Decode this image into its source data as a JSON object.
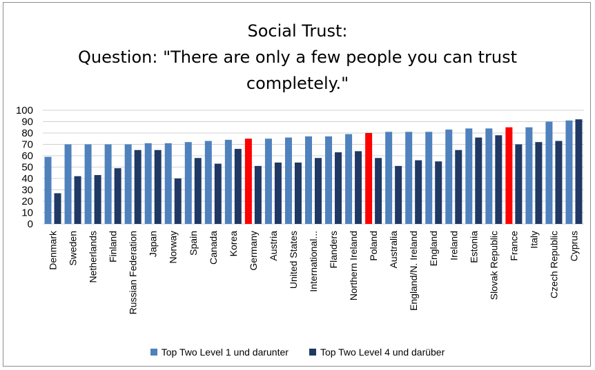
{
  "chart_data": {
    "type": "bar",
    "title_lines": [
      "Social Trust:",
      "Question: \"There are only a few people you can trust",
      "completely.\""
    ],
    "categories": [
      "Denmark",
      "Sweden",
      "Netherlands",
      "Finland",
      "Russian Federation",
      "Japan",
      "Norway",
      "Spain",
      "Canada",
      "Korea",
      "Germany",
      "Austria",
      "United States",
      "International...",
      "Flanders",
      "Northern Ireland",
      "Poland",
      "Australia",
      "England/N. Ireland",
      "England",
      "Ireland",
      "Estonia",
      "Slovak Republic",
      "France",
      "Italy",
      "Czech Republic",
      "Cyprus"
    ],
    "highlighted_categories": [
      "Germany",
      "Poland",
      "France"
    ],
    "series": [
      {
        "name": "Top Two Level 1 und darunter",
        "color": "#4f81bd",
        "values": [
          59,
          70,
          70,
          70,
          70,
          71,
          71,
          72,
          73,
          74,
          75,
          75,
          76,
          77,
          77,
          79,
          80,
          81,
          81,
          81,
          83,
          84,
          84,
          85,
          85,
          90,
          91
        ]
      },
      {
        "name": "Top Two Level 4 und darüber",
        "color": "#1f3864",
        "values": [
          27,
          42,
          43,
          49,
          65,
          65,
          40,
          58,
          53,
          66,
          51,
          54,
          54,
          58,
          63,
          64,
          58,
          51,
          56,
          55,
          65,
          76,
          78,
          70,
          72,
          73,
          92
        ]
      }
    ],
    "highlight_color": "#ff0000",
    "yticks": [
      0,
      10,
      20,
      30,
      40,
      50,
      60,
      70,
      80,
      90,
      100
    ],
    "ylim": [
      0,
      100
    ],
    "grid": true,
    "legend_position": "bottom"
  }
}
